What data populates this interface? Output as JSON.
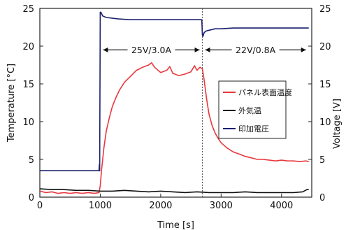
{
  "chart_data": {
    "type": "line",
    "xlabel": "Time [s]",
    "ylabel_left": "Temperature [°C]",
    "ylabel_right": "Voltage [V]",
    "xlim": [
      0,
      4500
    ],
    "ylim_left": [
      0,
      25
    ],
    "ylim_right": [
      0,
      25
    ],
    "x_ticks": [
      0,
      1000,
      2000,
      3000,
      4000
    ],
    "y_ticks_left": [
      0,
      5,
      10,
      15,
      20,
      25
    ],
    "y_ticks_right": [
      0,
      5,
      10,
      15,
      20,
      25
    ],
    "grid": false,
    "legend_position": "right-middle",
    "annotations": [
      {
        "text": "25V/3.0A",
        "x_start": 1000,
        "x_end": 2690,
        "y": 19.5
      },
      {
        "text": "22V/0.8A",
        "x_start": 2690,
        "x_end": 4450,
        "y": 19.5
      }
    ],
    "vertical_markers": [
      2690
    ],
    "series": [
      {
        "name": "パネル表面温度",
        "color": "#e8383d",
        "axis": "left",
        "x": [
          0,
          100,
          200,
          300,
          400,
          500,
          600,
          700,
          800,
          900,
          980,
          1000,
          1020,
          1060,
          1100,
          1150,
          1200,
          1260,
          1320,
          1400,
          1500,
          1600,
          1700,
          1800,
          1850,
          1900,
          2000,
          2100,
          2150,
          2200,
          2300,
          2400,
          2500,
          2560,
          2600,
          2650,
          2690,
          2720,
          2760,
          2800,
          2850,
          2900,
          2950,
          3000,
          3100,
          3200,
          3300,
          3400,
          3500,
          3600,
          3700,
          3800,
          3900,
          4000,
          4100,
          4200,
          4300,
          4400,
          4450
        ],
        "y": [
          0.8,
          0.6,
          0.7,
          0.5,
          0.6,
          0.5,
          0.6,
          0.5,
          0.6,
          0.5,
          0.6,
          1.5,
          3.5,
          6.5,
          8.8,
          10.5,
          12.0,
          13.2,
          14.2,
          15.2,
          16.0,
          16.8,
          17.2,
          17.5,
          17.8,
          17.2,
          16.5,
          16.8,
          17.3,
          16.4,
          16.1,
          16.3,
          16.6,
          17.4,
          16.8,
          17.2,
          17.0,
          15.5,
          13.0,
          11.0,
          9.5,
          8.5,
          7.8,
          7.2,
          6.5,
          6.0,
          5.7,
          5.4,
          5.2,
          5.0,
          5.0,
          4.9,
          4.8,
          4.9,
          4.8,
          4.8,
          4.7,
          4.8,
          4.7
        ]
      },
      {
        "name": "外気温",
        "color": "#111111",
        "axis": "left",
        "x": [
          0,
          200,
          400,
          600,
          800,
          1000,
          1200,
          1400,
          1600,
          1800,
          2000,
          2200,
          2400,
          2600,
          2800,
          3000,
          3200,
          3400,
          3600,
          3800,
          4000,
          4200,
          4350,
          4420,
          4450
        ],
        "y": [
          1.1,
          1.0,
          1.0,
          0.9,
          0.9,
          0.8,
          0.8,
          0.9,
          0.8,
          0.7,
          0.8,
          0.7,
          0.6,
          0.7,
          0.6,
          0.6,
          0.6,
          0.7,
          0.6,
          0.6,
          0.6,
          0.6,
          0.7,
          1.0,
          1.0
        ]
      },
      {
        "name": "印加電圧",
        "color": "#1a1f6e",
        "axis": "right",
        "x": [
          0,
          100,
          300,
          500,
          700,
          900,
          950,
          980,
          985,
          990,
          1000,
          1010,
          1040,
          1100,
          1300,
          1500,
          1800,
          2100,
          2400,
          2680,
          2690,
          2700,
          2720,
          2750,
          2800,
          2900,
          3000,
          3200,
          3500,
          3800,
          4100,
          4450
        ],
        "y": [
          3.5,
          3.5,
          3.5,
          3.5,
          3.5,
          3.5,
          3.5,
          3.5,
          4.3,
          3.5,
          24.5,
          24.5,
          24.0,
          23.8,
          23.6,
          23.5,
          23.5,
          23.5,
          23.5,
          23.5,
          21.5,
          21.3,
          21.8,
          22.0,
          22.1,
          22.3,
          22.3,
          22.4,
          22.4,
          22.4,
          22.4,
          22.4
        ]
      }
    ]
  }
}
